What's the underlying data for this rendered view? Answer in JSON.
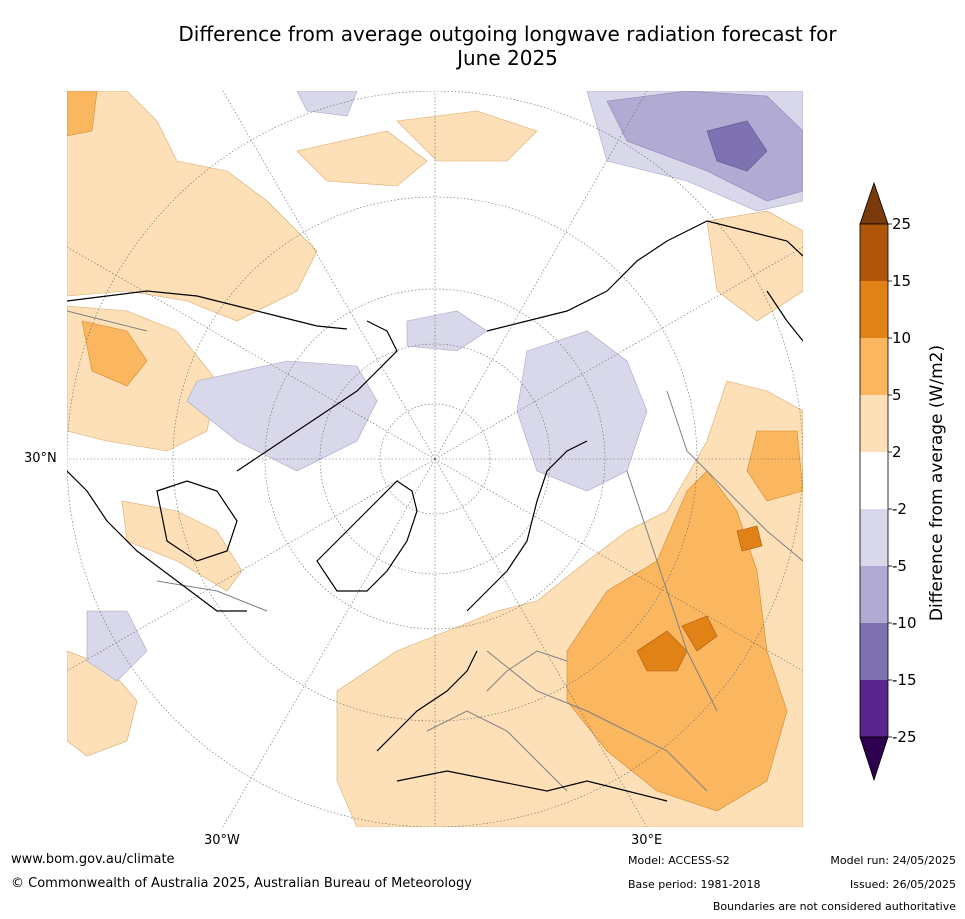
{
  "title_line1": "Difference from average outgoing longwave radiation forecast for",
  "title_line2": "June 2025",
  "map": {
    "projection": "north-polar-stereographic",
    "graticule_labels": {
      "lat_30n": "30°N",
      "lon_30w": "30°W",
      "lon_30e": "30°E"
    },
    "land_outline_color": "#000000",
    "border_color": "#808080"
  },
  "colorbar": {
    "title": "Difference from average (W/m2)",
    "tick_labels": [
      "25",
      "15",
      "10",
      "5",
      "2",
      "-2",
      "-5",
      "-10",
      "-15",
      "-25"
    ],
    "colors": {
      "above_25": "#7a3a0a",
      "15_to_25": "#b0560a",
      "10_to_15": "#e08216",
      "5_to_10": "#fbb660",
      "2_to_5": "#fde0b8",
      "-2_to_2": "#ffffff",
      "-5_to_-2": "#d8d8ea",
      "-10_to_-5": "#b1aad2",
      "-15_to_-10": "#7f72b0",
      "-25_to_-15": "#59268f",
      "below_-25": "#300050"
    }
  },
  "footer": {
    "website": "www.bom.gov.au/climate",
    "copyright": "© Commonwealth of Australia 2025, Australian Bureau of Meteorology",
    "model": "Model: ACCESS-S2",
    "base_period": "Base period: 1981-2018",
    "model_run": "Model run: 24/05/2025",
    "issued": "Issued: 26/05/2025",
    "disclaimer": "Boundaries are not considered authoritative"
  }
}
